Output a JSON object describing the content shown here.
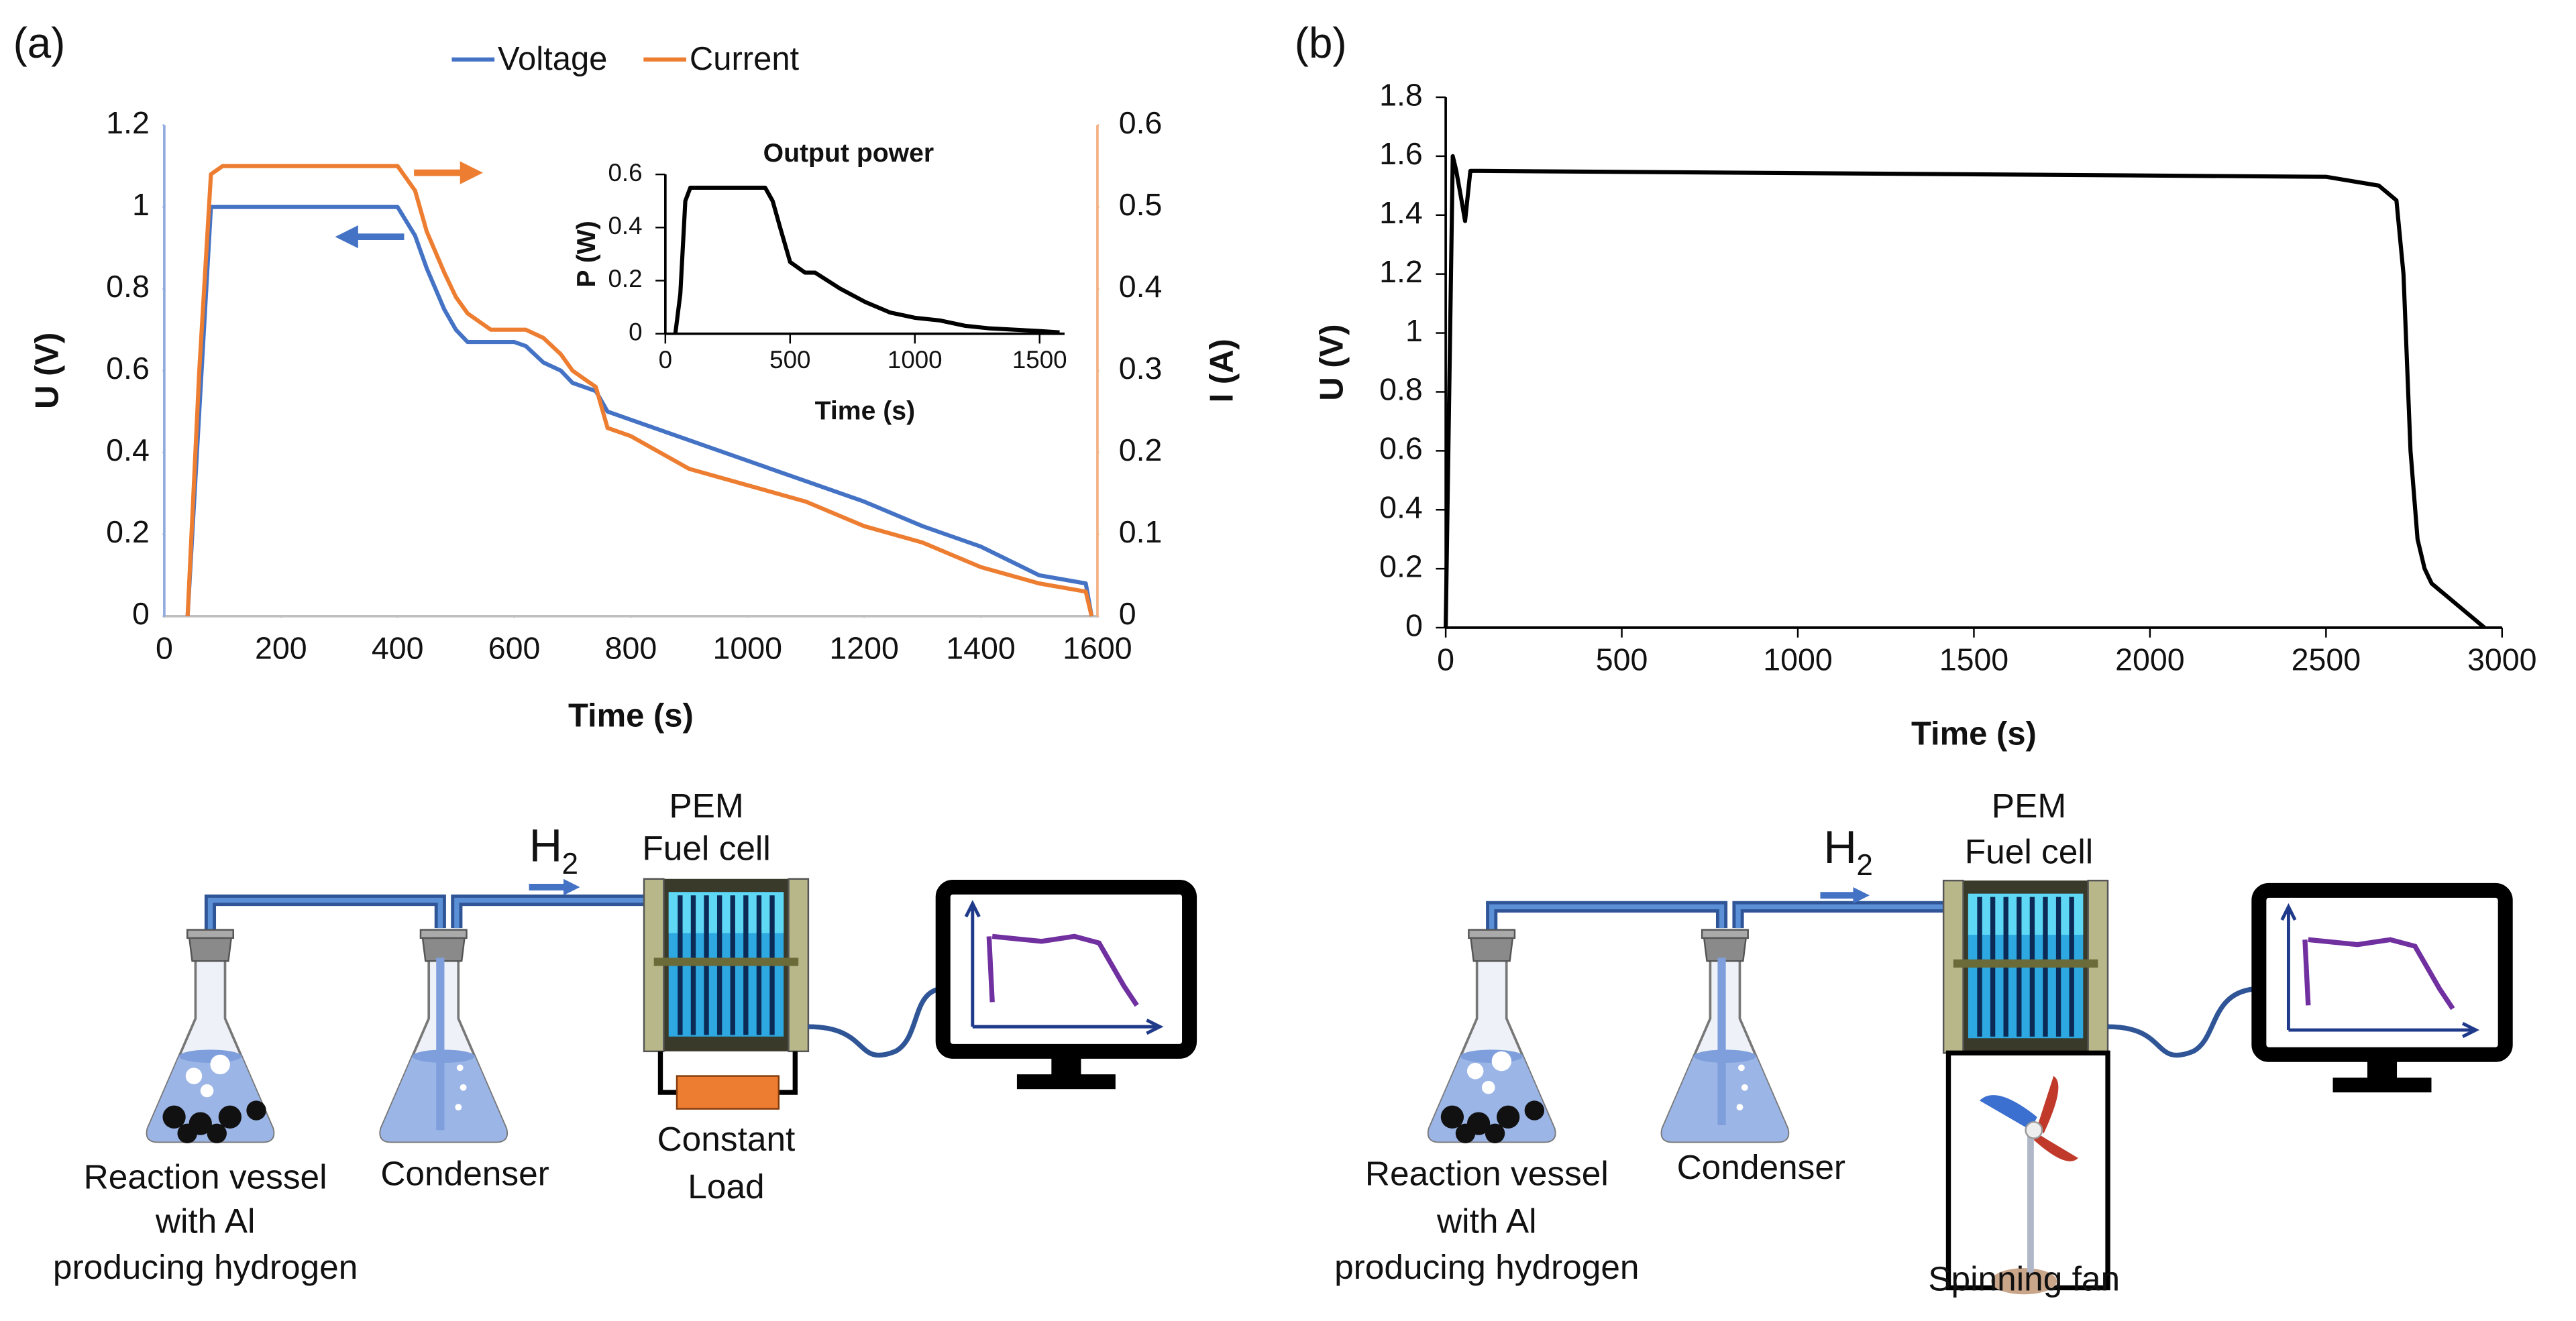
{
  "panels": [
    "(a)",
    "(b)"
  ],
  "chart_data": [
    {
      "type": "line",
      "xlabel": "Time (s)",
      "ylabel": "U (V)",
      "y2label": "I (A)",
      "legend": "top",
      "x": [
        40,
        60,
        80,
        100,
        400,
        430,
        450,
        480,
        500,
        520,
        560,
        600,
        620,
        650,
        680,
        700,
        720,
        740,
        760,
        800,
        900,
        1000,
        1100,
        1200,
        1300,
        1400,
        1500,
        1580,
        1590
      ],
      "series": [
        {
          "name": "Voltage",
          "color": "#4472c4",
          "axis": "y",
          "values": [
            0,
            0.5,
            1.0,
            1.0,
            1.0,
            0.93,
            0.85,
            0.75,
            0.7,
            0.67,
            0.67,
            0.67,
            0.66,
            0.62,
            0.6,
            0.57,
            0.56,
            0.55,
            0.5,
            0.48,
            0.43,
            0.38,
            0.33,
            0.28,
            0.22,
            0.17,
            0.1,
            0.08,
            0
          ]
        },
        {
          "name": "Current",
          "color": "#ed7d31",
          "axis": "y2",
          "values": [
            0,
            0.3,
            0.54,
            0.55,
            0.55,
            0.52,
            0.47,
            0.42,
            0.39,
            0.37,
            0.35,
            0.35,
            0.35,
            0.34,
            0.32,
            0.3,
            0.29,
            0.28,
            0.23,
            0.22,
            0.18,
            0.16,
            0.14,
            0.11,
            0.09,
            0.06,
            0.04,
            0.03,
            0
          ]
        }
      ],
      "xlim": [
        0,
        1600
      ],
      "xticks": [
        0,
        200,
        400,
        600,
        800,
        1000,
        1200,
        1400,
        1600
      ],
      "ylim": [
        0,
        1.2
      ],
      "yticks": [
        0,
        0.2,
        0.4,
        0.6,
        0.8,
        1,
        1.2
      ],
      "y2lim": [
        0,
        0.6
      ],
      "y2ticks": [
        0,
        0.1,
        0.2,
        0.3,
        0.4,
        0.5,
        0.6
      ]
    },
    {
      "type": "line",
      "title": "Output power",
      "xlabel": "Time (s)",
      "ylabel": "P (W)",
      "x": [
        40,
        60,
        80,
        100,
        400,
        430,
        460,
        500,
        560,
        600,
        650,
        700,
        760,
        800,
        900,
        1000,
        1100,
        1200,
        1300,
        1400,
        1500,
        1580
      ],
      "series": [
        {
          "name": "Output power",
          "color": "#000000",
          "values": [
            0,
            0.15,
            0.5,
            0.55,
            0.55,
            0.5,
            0.4,
            0.27,
            0.23,
            0.23,
            0.2,
            0.17,
            0.14,
            0.12,
            0.08,
            0.06,
            0.05,
            0.03,
            0.02,
            0.015,
            0.01,
            0.005
          ]
        }
      ],
      "xlim": [
        0,
        1600
      ],
      "xticks": [
        0,
        500,
        1000,
        1500
      ],
      "ylim": [
        0,
        0.6
      ],
      "yticks": [
        0,
        0.2,
        0.4,
        0.6
      ]
    },
    {
      "type": "line",
      "xlabel": "Time (s)",
      "ylabel": "U (V)",
      "x": [
        0,
        10,
        20,
        30,
        45,
        55,
        70,
        100,
        2500,
        2650,
        2700,
        2720,
        2740,
        2760,
        2780,
        2800,
        2850,
        2900,
        2950
      ],
      "series": [
        {
          "name": "Voltage",
          "color": "#000000",
          "values": [
            0,
            0.8,
            1.6,
            1.55,
            1.45,
            1.38,
            1.55,
            1.55,
            1.53,
            1.5,
            1.45,
            1.2,
            0.6,
            0.3,
            0.2,
            0.15,
            0.1,
            0.05,
            0
          ]
        }
      ],
      "xlim": [
        0,
        3000
      ],
      "xticks": [
        0,
        500,
        1000,
        1500,
        2000,
        2500,
        3000
      ],
      "ylim": [
        0,
        1.8
      ],
      "yticks": [
        0,
        0.2,
        0.4,
        0.6,
        0.8,
        1,
        1.2,
        1.4,
        1.6,
        1.8
      ]
    }
  ],
  "diagrams": [
    {
      "gas": {
        "symbol": "H",
        "subscript": "2"
      },
      "fuel_cell": [
        "PEM",
        "Fuel cell"
      ],
      "load": [
        "Constant",
        "Load"
      ],
      "vessel": [
        "Reaction vessel",
        "with Al",
        "producing hydrogen"
      ],
      "condenser": "Condenser"
    },
    {
      "gas": {
        "symbol": "H",
        "subscript": "2"
      },
      "fuel_cell": [
        "PEM",
        "Fuel cell"
      ],
      "fan": "Spinning fan",
      "vessel": [
        "Reaction vessel",
        "with Al",
        "producing hydrogen"
      ],
      "condenser": "Condenser"
    }
  ]
}
